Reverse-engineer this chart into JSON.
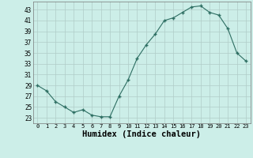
{
  "x": [
    0,
    1,
    2,
    3,
    4,
    5,
    6,
    7,
    8,
    9,
    10,
    11,
    12,
    13,
    14,
    15,
    16,
    17,
    18,
    19,
    20,
    21,
    22,
    23
  ],
  "y": [
    29,
    28,
    26,
    25,
    24,
    24.5,
    23.5,
    23.2,
    23.2,
    27,
    30,
    34,
    36.5,
    38.5,
    41,
    41.5,
    42.5,
    43.5,
    43.7,
    42.5,
    42,
    39.5,
    35,
    33.5
  ],
  "line_color": "#2d6e62",
  "marker_color": "#2d6e62",
  "bg_color": "#cceee8",
  "grid_color": "#b0ccc8",
  "xlabel": "Humidex (Indice chaleur)",
  "xlabel_fontsize": 7.5,
  "ytick_min": 23,
  "ytick_max": 43,
  "ytick_step": 2,
  "xtick_labels": [
    "0",
    "1",
    "2",
    "3",
    "4",
    "5",
    "6",
    "7",
    "8",
    "9",
    "10",
    "11",
    "12",
    "13",
    "14",
    "15",
    "16",
    "17",
    "18",
    "19",
    "20",
    "21",
    "22",
    "23"
  ],
  "ylim": [
    22.0,
    44.5
  ],
  "xlim": [
    -0.5,
    23.5
  ],
  "figsize": [
    3.2,
    2.0
  ],
  "dpi": 100
}
